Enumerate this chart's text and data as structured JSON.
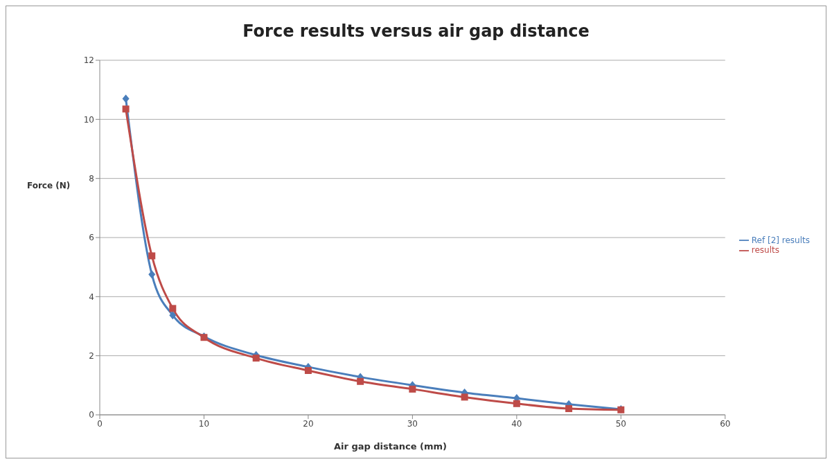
{
  "chart_data": {
    "type": "line",
    "title": "Force results versus air gap distance",
    "xlabel": "Air gap distance (mm)",
    "ylabel": "Force (N)",
    "x": [
      2.5,
      5,
      7,
      10,
      15,
      20,
      25,
      30,
      35,
      40,
      45,
      50
    ],
    "series": [
      {
        "name": "Ref [2] results",
        "color": "#4a7ebb",
        "marker": "diamond",
        "values": [
          10.7,
          4.75,
          3.37,
          2.65,
          2.02,
          1.62,
          1.28,
          1.0,
          0.75,
          0.56,
          0.36,
          0.19
        ]
      },
      {
        "name": "results",
        "color": "#be4b48",
        "marker": "square",
        "values": [
          10.35,
          5.38,
          3.6,
          2.62,
          1.92,
          1.5,
          1.13,
          0.87,
          0.6,
          0.38,
          0.21,
          0.17
        ]
      }
    ],
    "xlim": [
      0,
      60
    ],
    "xticks": [
      0,
      10,
      20,
      30,
      40,
      50,
      60
    ],
    "ylim": [
      0,
      12
    ],
    "yticks": [
      0,
      2,
      4,
      6,
      8,
      10,
      12
    ],
    "grid": "y",
    "legend": "right",
    "line_style": "solid"
  }
}
